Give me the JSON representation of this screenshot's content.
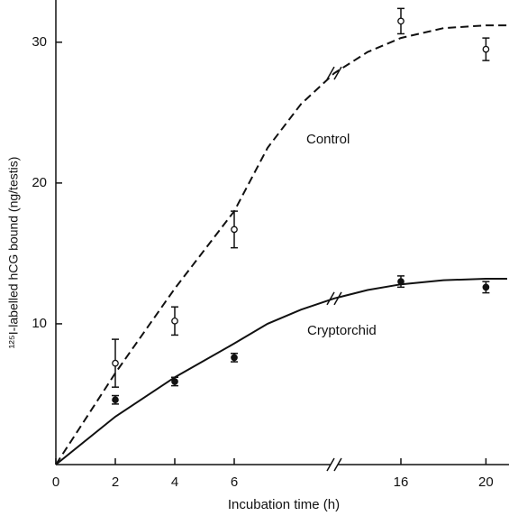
{
  "chart_data": {
    "type": "scatter",
    "x_label": "Incubation time (h)",
    "y_label": "¹²⁵I-labelled hCG bound (ng/testis)",
    "x": [
      2,
      4,
      6,
      16,
      20
    ],
    "series": [
      {
        "name": "Control",
        "color": "#111111",
        "marker": "open",
        "values": [
          7.2,
          10.2,
          16.7,
          31.5,
          29.5
        ],
        "errors": [
          1.7,
          1.0,
          1.3,
          0.9,
          0.8
        ]
      },
      {
        "name": "Cryptorchid",
        "color": "#111111",
        "marker": "filled",
        "values": [
          4.6,
          5.9,
          7.6,
          13.0,
          12.6
        ],
        "errors": [
          0.3,
          0.3,
          0.3,
          0.4,
          0.4
        ]
      }
    ],
    "curves": [
      {
        "style": "dashed",
        "x": [
          0,
          2,
          4,
          6,
          8,
          10,
          12,
          14,
          16,
          18,
          20,
          21
        ],
        "values": [
          0,
          6.5,
          12.5,
          18,
          22.5,
          25.6,
          27.8,
          29.3,
          30.3,
          31,
          31.2,
          31.2
        ]
      },
      {
        "style": "solid",
        "x": [
          0,
          2,
          4,
          6,
          8,
          10,
          12,
          14,
          16,
          18,
          20,
          21
        ],
        "values": [
          0,
          3.4,
          6.2,
          8.6,
          10,
          11,
          11.8,
          12.4,
          12.8,
          13.1,
          13.2,
          13.2
        ]
      }
    ],
    "xlim": [
      0,
      21
    ],
    "xticks": [
      0,
      2,
      4,
      6,
      16,
      20
    ],
    "x_break": [
      6,
      16
    ],
    "ylim": [
      0,
      33
    ],
    "yticks": [
      10,
      20,
      30
    ]
  }
}
